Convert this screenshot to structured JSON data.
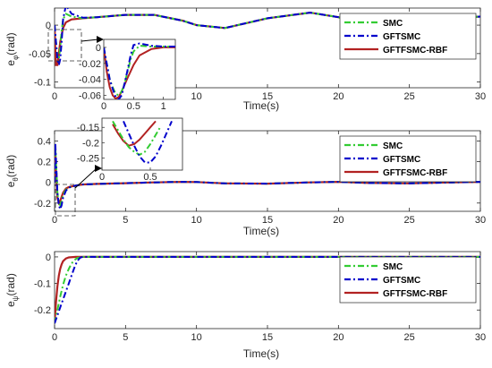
{
  "colors": {
    "SMC": "#33cc33",
    "GFTSMC": "#0000cc",
    "GFTFSMC-RBF": "#b22222",
    "axis": "#262626"
  },
  "chart_data": [
    {
      "type": "line",
      "xlabel": "Time(s)",
      "ylabel": "e",
      "ylabel_sub": "φ",
      "ylabel_unit": "(rad)",
      "xlim": [
        0,
        30
      ],
      "ylim": [
        -0.11,
        0.03
      ],
      "xticks": [
        "0",
        "5",
        "10",
        "15",
        "20",
        "25",
        "30"
      ],
      "yticks": [
        "0",
        "-0.05",
        "-0.1"
      ],
      "ytick_values": [
        0,
        -0.05,
        -0.1
      ],
      "legend_position": "top-right",
      "series": [
        {
          "name": "SMC",
          "style": "dash-dot",
          "x": [
            0,
            0.1,
            0.2,
            0.3,
            0.4,
            0.5,
            0.6,
            0.8,
            1.2,
            2,
            3,
            5,
            7,
            9,
            10,
            12,
            15,
            18,
            20,
            22,
            25,
            28,
            30
          ],
          "y": [
            0,
            -0.03,
            -0.055,
            -0.06,
            -0.04,
            -0.01,
            0.01,
            0.02,
            0.015,
            0.012,
            0.014,
            0.018,
            0.018,
            0.008,
            0,
            -0.005,
            0.012,
            0.022,
            0.014,
            -0.002,
            -0.005,
            0.012,
            0.015
          ]
        },
        {
          "name": "GFTSMC",
          "style": "dash-dot",
          "x": [
            0,
            0.1,
            0.2,
            0.3,
            0.4,
            0.5,
            0.6,
            0.8,
            1.2,
            2,
            3,
            5,
            7,
            9,
            10,
            12,
            15,
            18,
            20,
            22,
            25,
            28,
            30
          ],
          "y": [
            0,
            -0.03,
            -0.06,
            -0.07,
            -0.06,
            -0.03,
            0.01,
            0.035,
            0.02,
            0.013,
            0.014,
            0.018,
            0.018,
            0.008,
            0,
            -0.005,
            0.012,
            0.022,
            0.014,
            -0.002,
            -0.005,
            0.012,
            0.015
          ]
        },
        {
          "name": "GFTFSMC-RBF",
          "style": "solid",
          "x": [
            0,
            0.05,
            0.1,
            0.2,
            0.3,
            0.4,
            0.6,
            0.8,
            1.2,
            2,
            3,
            5,
            7,
            9,
            10,
            12,
            15,
            18,
            20,
            22,
            25,
            28,
            30
          ],
          "y": [
            0,
            -0.04,
            -0.07,
            -0.07,
            -0.05,
            -0.03,
            -0.005,
            0.005,
            0.01,
            0.012,
            0.014,
            0.018,
            0.018,
            0.008,
            0,
            -0.005,
            0.012,
            0.022,
            0.014,
            -0.002,
            -0.005,
            0.012,
            0.015
          ]
        }
      ],
      "inset": {
        "xlim": [
          0,
          1.2
        ],
        "ylim": [
          -0.065,
          0.01
        ],
        "xticks": [
          "0",
          "0.5",
          "1"
        ],
        "xtick_values": [
          0,
          0.5,
          1
        ],
        "yticks": [
          "0",
          "-0.02",
          "-0.04",
          "-0.06"
        ],
        "ytick_values": [
          0,
          -0.02,
          -0.04,
          -0.06
        ],
        "series": [
          {
            "name": "SMC",
            "x": [
              0,
              0.05,
              0.1,
              0.15,
              0.2,
              0.25,
              0.3,
              0.35,
              0.4,
              0.45,
              0.5,
              0.6,
              0.8,
              1,
              1.2
            ],
            "y": [
              0,
              -0.02,
              -0.04,
              -0.05,
              -0.058,
              -0.06,
              -0.055,
              -0.045,
              -0.03,
              -0.015,
              -0.005,
              0.002,
              0.001,
              0.001,
              0.001
            ]
          },
          {
            "name": "GFTSMC",
            "x": [
              0,
              0.05,
              0.1,
              0.15,
              0.2,
              0.25,
              0.3,
              0.35,
              0.4,
              0.45,
              0.5,
              0.6,
              0.8,
              1,
              1.2
            ],
            "y": [
              0,
              -0.02,
              -0.04,
              -0.052,
              -0.062,
              -0.065,
              -0.06,
              -0.045,
              -0.028,
              -0.01,
              0.003,
              0.005,
              0.002,
              0.001,
              0.001
            ]
          },
          {
            "name": "GFTFSMC-RBF",
            "x": [
              0,
              0.05,
              0.1,
              0.15,
              0.2,
              0.25,
              0.3,
              0.4,
              0.5,
              0.6,
              0.8,
              1,
              1.2
            ],
            "y": [
              0,
              -0.03,
              -0.05,
              -0.06,
              -0.064,
              -0.062,
              -0.055,
              -0.038,
              -0.022,
              -0.01,
              -0.002,
              0,
              0
            ]
          }
        ]
      }
    },
    {
      "type": "line",
      "xlabel": "Time(s)",
      "ylabel": "e",
      "ylabel_sub": "θ",
      "ylabel_unit": "(rad)",
      "xlim": [
        0,
        30
      ],
      "ylim": [
        -0.28,
        0.5
      ],
      "xticks": [
        "0",
        "5",
        "10",
        "15",
        "20",
        "25",
        "30"
      ],
      "yticks": [
        "0.4",
        "0.2",
        "0",
        "-0.2"
      ],
      "ytick_values": [
        0.4,
        0.2,
        0,
        -0.2
      ],
      "legend_position": "top-right",
      "series": [
        {
          "name": "SMC",
          "style": "dash-dot",
          "x": [
            0,
            0.05,
            0.1,
            0.2,
            0.3,
            0.4,
            0.5,
            0.6,
            0.8,
            1,
            1.5,
            2,
            3,
            5,
            7,
            9,
            10,
            12,
            15,
            18,
            20,
            22,
            25,
            28,
            30
          ],
          "y": [
            0,
            0.35,
            0.2,
            -0.1,
            -0.2,
            -0.22,
            -0.18,
            -0.12,
            -0.07,
            -0.05,
            -0.03,
            -0.02,
            -0.015,
            -0.008,
            0,
            0.005,
            0.003,
            -0.01,
            -0.012,
            0,
            0.005,
            -0.005,
            -0.01,
            0,
            0.005
          ]
        },
        {
          "name": "GFTSMC",
          "style": "dash-dot",
          "x": [
            0,
            0.05,
            0.1,
            0.2,
            0.3,
            0.4,
            0.5,
            0.6,
            0.8,
            1,
            1.5,
            2,
            3,
            5,
            7,
            9,
            10,
            12,
            15,
            18,
            20,
            22,
            25,
            28,
            30
          ],
          "y": [
            0,
            0.38,
            0.22,
            -0.1,
            -0.22,
            -0.26,
            -0.22,
            -0.15,
            -0.08,
            -0.05,
            -0.03,
            -0.02,
            -0.015,
            -0.008,
            0,
            0.005,
            0.003,
            -0.01,
            -0.012,
            0,
            0.005,
            -0.005,
            -0.01,
            0,
            0.005
          ]
        },
        {
          "name": "GFTFSMC-RBF",
          "style": "solid",
          "x": [
            0,
            0.05,
            0.1,
            0.2,
            0.3,
            0.4,
            0.5,
            0.6,
            0.8,
            1,
            1.5,
            2,
            3,
            5,
            7,
            9,
            10,
            12,
            15,
            18,
            20,
            22,
            25,
            28,
            30
          ],
          "y": [
            0,
            0.3,
            0.1,
            -0.15,
            -0.2,
            -0.18,
            -0.14,
            -0.1,
            -0.06,
            -0.045,
            -0.03,
            -0.02,
            -0.015,
            -0.008,
            0,
            0.005,
            0.003,
            -0.01,
            -0.012,
            0,
            0.005,
            -0.005,
            -0.01,
            0,
            0.005
          ]
        }
      ],
      "inset": {
        "xlim": [
          0.05,
          0.8
        ],
        "ylim": [
          -0.29,
          -0.12
        ],
        "xticks": [
          "0",
          "0.5"
        ],
        "xtick_values": [
          0.05,
          0.5
        ],
        "yticks": [
          "-0.15",
          "-0.2",
          "-0.25"
        ],
        "ytick_values": [
          -0.15,
          -0.2,
          -0.25
        ],
        "series": [
          {
            "name": "SMC",
            "x": [
              0.15,
              0.2,
              0.25,
              0.3,
              0.35,
              0.4,
              0.45,
              0.5,
              0.55,
              0.6
            ],
            "y": [
              -0.13,
              -0.16,
              -0.19,
              -0.215,
              -0.23,
              -0.24,
              -0.23,
              -0.205,
              -0.175,
              -0.145
            ]
          },
          {
            "name": "GFTSMC",
            "x": [
              0.25,
              0.3,
              0.35,
              0.4,
              0.45,
              0.5,
              0.55,
              0.6,
              0.65,
              0.7
            ],
            "y": [
              -0.13,
              -0.17,
              -0.21,
              -0.245,
              -0.265,
              -0.265,
              -0.245,
              -0.21,
              -0.17,
              -0.13
            ]
          },
          {
            "name": "GFTFSMC-RBF",
            "x": [
              0.15,
              0.2,
              0.25,
              0.3,
              0.35,
              0.4,
              0.45,
              0.5,
              0.55
            ],
            "y": [
              -0.14,
              -0.17,
              -0.195,
              -0.21,
              -0.205,
              -0.19,
              -0.17,
              -0.15,
              -0.13
            ]
          }
        ]
      }
    },
    {
      "type": "line",
      "xlabel": "Time(s)",
      "ylabel": "e",
      "ylabel_sub": "ψ",
      "ylabel_unit": "(rad)",
      "xlim": [
        0,
        30
      ],
      "ylim": [
        -0.27,
        0.02
      ],
      "xticks": [
        "0",
        "5",
        "10",
        "15",
        "20",
        "25",
        "30"
      ],
      "yticks": [
        "0",
        "-0.1",
        "-0.2"
      ],
      "ytick_values": [
        0,
        -0.1,
        -0.2
      ],
      "legend_position": "top-right",
      "series": [
        {
          "name": "SMC",
          "style": "dash-dot",
          "x": [
            0,
            0.2,
            0.4,
            0.6,
            0.8,
            1,
            1.2,
            1.4,
            1.6,
            2,
            3,
            5,
            10,
            15,
            20,
            25,
            30
          ],
          "y": [
            -0.25,
            -0.2,
            -0.15,
            -0.105,
            -0.07,
            -0.045,
            -0.025,
            -0.012,
            -0.004,
            0,
            0,
            0,
            0,
            0,
            0,
            0,
            0
          ]
        },
        {
          "name": "GFTSMC",
          "style": "dash-dot",
          "x": [
            0,
            0.2,
            0.4,
            0.6,
            0.8,
            1,
            1.2,
            1.4,
            1.6,
            1.8,
            2,
            3,
            5,
            10,
            15,
            20,
            25,
            30
          ],
          "y": [
            -0.25,
            -0.22,
            -0.19,
            -0.16,
            -0.13,
            -0.1,
            -0.07,
            -0.04,
            -0.015,
            -0.003,
            0,
            0,
            0,
            0,
            0,
            0,
            0,
            0
          ]
        },
        {
          "name": "GFTFSMC-RBF",
          "style": "solid",
          "x": [
            0,
            0.1,
            0.2,
            0.3,
            0.4,
            0.5,
            0.6,
            0.8,
            1,
            1.5,
            3,
            5,
            10,
            15,
            20,
            25,
            30
          ],
          "y": [
            -0.25,
            -0.17,
            -0.11,
            -0.07,
            -0.045,
            -0.028,
            -0.016,
            -0.006,
            -0.002,
            0,
            0,
            0,
            0,
            0,
            0,
            0,
            0
          ]
        }
      ]
    }
  ]
}
